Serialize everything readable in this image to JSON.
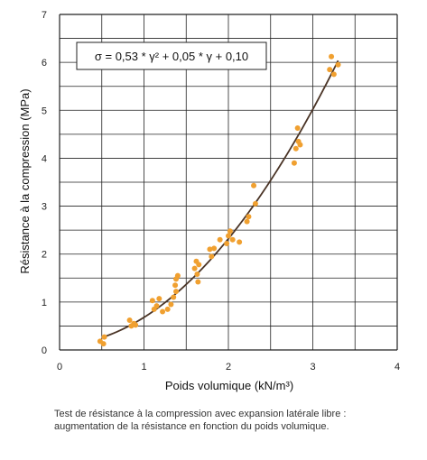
{
  "chart_data": {
    "type": "scatter",
    "xlabel": "Poids volumique  (kN/m³)",
    "ylabel": "Résistance à la compression (MPa)",
    "xlim": [
      0,
      4
    ],
    "ylim": [
      0,
      7
    ],
    "x_ticks": [
      "0",
      "1",
      "2",
      "3",
      "4"
    ],
    "y_ticks": [
      "0",
      "1",
      "2",
      "3",
      "4",
      "5",
      "6",
      "7"
    ],
    "grid": true,
    "equation": "σ = 0,53 * γ² + 0,05 * γ + 0,10",
    "fit_curve": {
      "a": 0.53,
      "b": 0.05,
      "c": 0.1,
      "x_range": [
        0.5,
        3.3
      ]
    },
    "point_color": "#f0a030",
    "curve_color": "#4a3426",
    "points": [
      [
        0.48,
        0.18
      ],
      [
        0.52,
        0.13
      ],
      [
        0.53,
        0.27
      ],
      [
        0.83,
        0.62
      ],
      [
        0.85,
        0.5
      ],
      [
        0.88,
        0.55
      ],
      [
        0.9,
        0.52
      ],
      [
        1.1,
        1.03
      ],
      [
        1.12,
        0.85
      ],
      [
        1.15,
        0.92
      ],
      [
        1.18,
        1.07
      ],
      [
        1.22,
        0.8
      ],
      [
        1.28,
        0.85
      ],
      [
        1.32,
        0.95
      ],
      [
        1.35,
        1.1
      ],
      [
        1.37,
        1.35
      ],
      [
        1.38,
        1.48
      ],
      [
        1.4,
        1.55
      ],
      [
        1.38,
        1.22
      ],
      [
        1.6,
        1.7
      ],
      [
        1.62,
        1.85
      ],
      [
        1.63,
        1.58
      ],
      [
        1.64,
        1.42
      ],
      [
        1.65,
        1.78
      ],
      [
        1.78,
        2.1
      ],
      [
        1.8,
        1.95
      ],
      [
        1.83,
        2.12
      ],
      [
        1.9,
        2.3
      ],
      [
        1.98,
        2.22
      ],
      [
        2.0,
        2.38
      ],
      [
        2.02,
        2.48
      ],
      [
        2.05,
        2.3
      ],
      [
        2.13,
        2.25
      ],
      [
        2.22,
        2.68
      ],
      [
        2.24,
        2.78
      ],
      [
        2.3,
        3.43
      ],
      [
        2.32,
        3.05
      ],
      [
        2.78,
        3.9
      ],
      [
        2.8,
        4.2
      ],
      [
        2.82,
        4.63
      ],
      [
        2.83,
        4.35
      ],
      [
        2.85,
        4.28
      ],
      [
        3.2,
        5.85
      ],
      [
        3.22,
        6.12
      ],
      [
        3.25,
        5.75
      ],
      [
        3.3,
        5.95
      ]
    ]
  },
  "caption": {
    "line1": "Test de résistance à la compression avec expansion latérale libre :",
    "line2": "augmentation de la résistance en fonction du poids volumique."
  }
}
